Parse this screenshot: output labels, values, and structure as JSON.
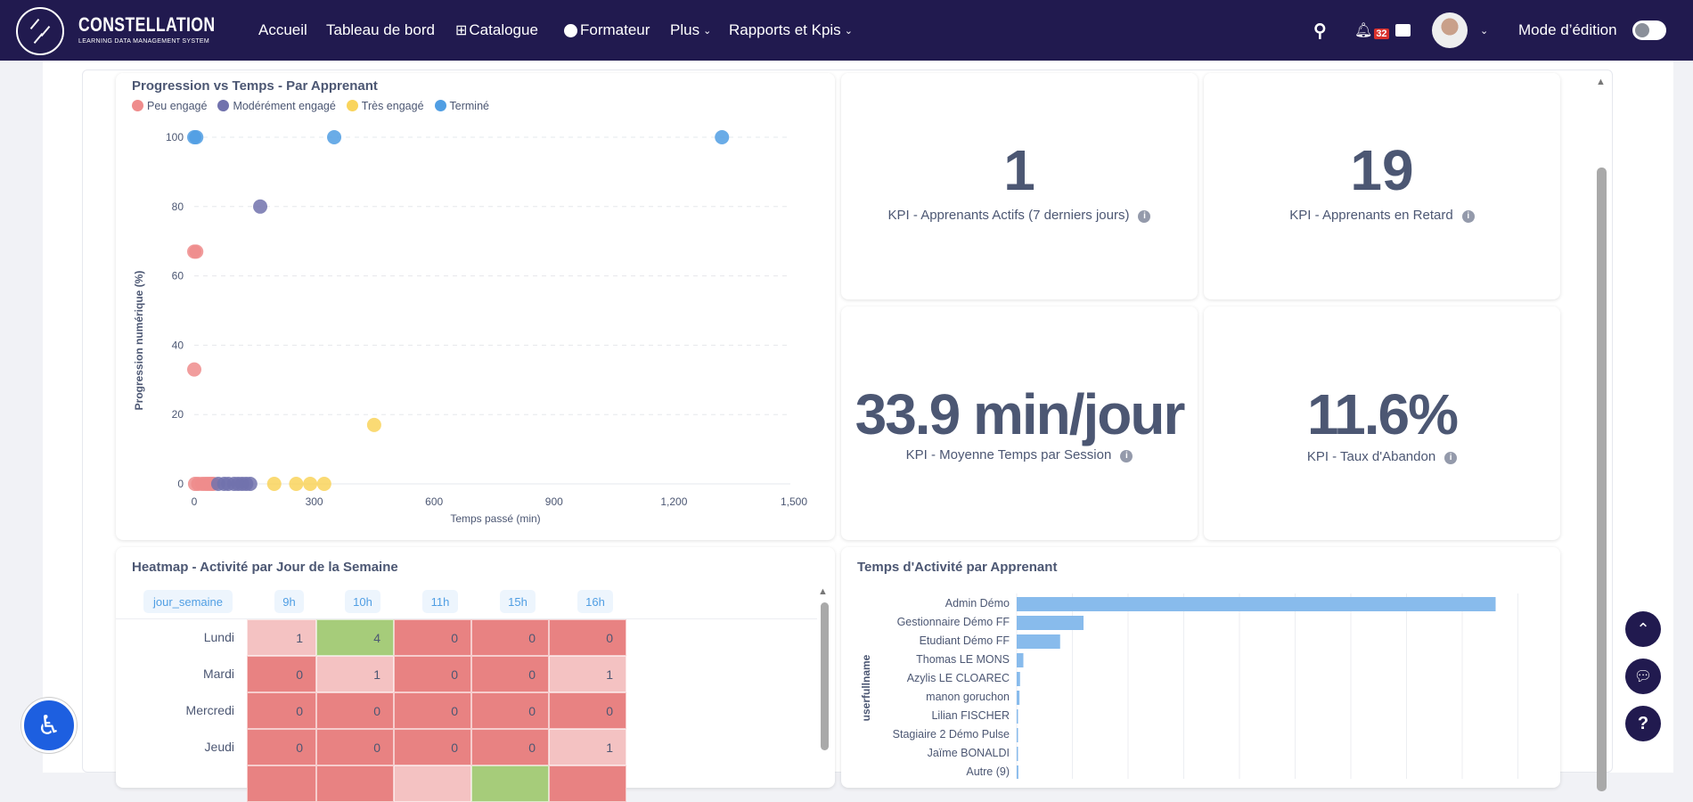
{
  "nav": {
    "brand_title": "CONSTELLATION",
    "brand_subtitle": "LEARNING DATA MANAGEMENT SYSTEM",
    "items": [
      {
        "label": "Accueil",
        "icon": ""
      },
      {
        "label": "Tableau de bord",
        "icon": ""
      },
      {
        "label": "Catalogue",
        "icon": "grid-icon"
      },
      {
        "label": "Formateur",
        "icon": "user-circle-icon"
      },
      {
        "label": "Plus",
        "icon": "chevron-down-icon"
      },
      {
        "label": "Rapports et Kpis",
        "icon": "chevron-down-icon"
      }
    ],
    "notification_count": "32",
    "edit_mode_label": "Mode d’édition",
    "edit_mode_on": false
  },
  "scatter": {
    "title": "Progression vs Temps - Par Apprenant"
  },
  "kpis": [
    {
      "value": "1",
      "label": "KPI - Apprenants Actifs (7 derniers jours)"
    },
    {
      "value": "19",
      "label": "KPI - Apprenants en Retard"
    },
    {
      "value": "33.9 min/jour",
      "label": "KPI - Moyenne Temps par Session"
    },
    {
      "value": "11.6%",
      "label": "KPI - Taux d'Abandon"
    }
  ],
  "heatmap": {
    "title": "Heatmap - Activité par Jour de la Semaine",
    "row_header": "jour_semaine",
    "columns": [
      "9h",
      "10h",
      "11h",
      "15h",
      "16h"
    ],
    "rows": [
      {
        "day": "Lundi",
        "values": [
          "1",
          "4",
          "0",
          "0",
          "0"
        ]
      },
      {
        "day": "Mardi",
        "values": [
          "0",
          "1",
          "0",
          "0",
          "1"
        ]
      },
      {
        "day": "Mercredi",
        "values": [
          "0",
          "0",
          "0",
          "0",
          "0"
        ]
      },
      {
        "day": "Jeudi",
        "values": [
          "0",
          "0",
          "0",
          "0",
          "1"
        ]
      },
      {
        "day": "",
        "values": [
          "",
          "",
          "",
          "",
          ""
        ],
        "levels": [
          "low",
          "low",
          "mid",
          "high",
          "low"
        ]
      }
    ],
    "colors": {
      "low": "#e88282",
      "mid": "#f4c2c2",
      "high": "#a6cc7a"
    }
  },
  "chart_data": [
    {
      "type": "scatter",
      "title": "Progression vs Temps - Par Apprenant",
      "xlabel": "Temps passé (min)",
      "ylabel": "Progression numérique (%)",
      "xlim": [
        0,
        1500
      ],
      "ylim": [
        0,
        100
      ],
      "xticks": [
        "0",
        "300",
        "600",
        "900",
        "1,200",
        "1,500"
      ],
      "yticks": [
        "0",
        "20",
        "40",
        "60",
        "80",
        "100"
      ],
      "grid": "horizontal dashed",
      "legend": "top-left",
      "series": [
        {
          "name": "Peu engagé",
          "color": "#ef8c8c",
          "points": [
            [
              0,
              67
            ],
            [
              5,
              67
            ],
            [
              0,
              33
            ],
            [
              2,
              0
            ],
            [
              10,
              0
            ],
            [
              20,
              0
            ],
            [
              28,
              0
            ],
            [
              35,
              0
            ],
            [
              42,
              0
            ],
            [
              48,
              0
            ]
          ]
        },
        {
          "name": "Modérément engagé",
          "color": "#7172ad",
          "points": [
            [
              165,
              80
            ],
            [
              60,
              0
            ],
            [
              75,
              0
            ],
            [
              85,
              0
            ],
            [
              100,
              0
            ],
            [
              110,
              0
            ],
            [
              120,
              0
            ],
            [
              130,
              0
            ],
            [
              140,
              0
            ]
          ]
        },
        {
          "name": "Très engagé",
          "color": "#f9d45c",
          "points": [
            [
              450,
              17
            ],
            [
              200,
              0
            ],
            [
              255,
              0
            ],
            [
              290,
              0
            ],
            [
              325,
              0
            ]
          ]
        },
        {
          "name": "Terminé",
          "color": "#509ee3",
          "points": [
            [
              0,
              100
            ],
            [
              5,
              100
            ],
            [
              350,
              100
            ],
            [
              1320,
              100
            ]
          ]
        }
      ]
    },
    {
      "type": "bar",
      "orientation": "horizontal",
      "title": "Temps d'Activité par Apprenant",
      "ylabel": "userfullname",
      "color": "#88bbec",
      "grid": "vertical",
      "categories": [
        "Admin Démo",
        "Gestionnaire Démo FF",
        "Etudiant Démo FF",
        "Thomas LE MONS",
        "Azylis LE CLOAREC",
        "manon goruchon",
        "Lilian FISCHER",
        "Stagiaire 2 Démo Pulse",
        "Jaïme BONALDI",
        "Autre (9)"
      ],
      "values": [
        8.6,
        1.2,
        0.78,
        0.12,
        0.06,
        0.05,
        0.02,
        0.01,
        0.01,
        0.03
      ]
    }
  ]
}
